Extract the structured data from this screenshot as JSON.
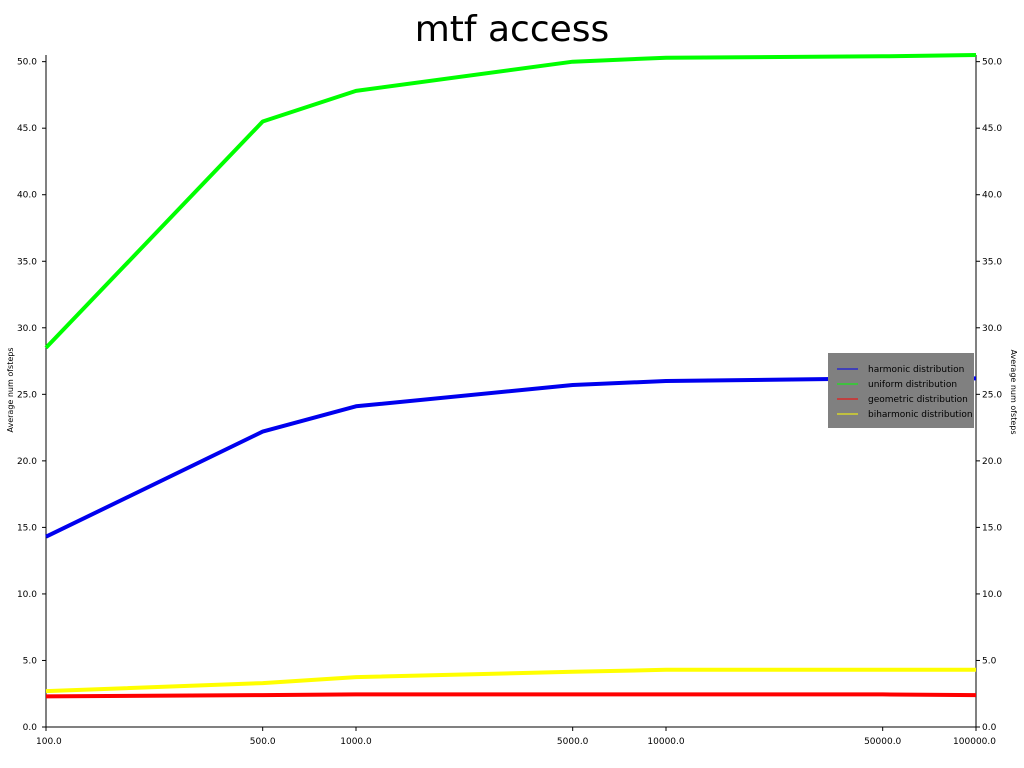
{
  "chart_data": {
    "type": "line",
    "title": "mtf access",
    "xlabel": "",
    "ylabel": "Average num of steps",
    "ylabel_display": "Average num ofsteps",
    "x_scale": "log",
    "x": [
      100,
      500,
      1000,
      5000,
      10000,
      50000,
      100000
    ],
    "x_tick_labels": [
      "100.0",
      "500.0",
      "1000.0",
      "5000.0",
      "10000.0",
      "50000.0",
      "100000.0"
    ],
    "xlim": [
      100,
      100000
    ],
    "ylim": [
      0,
      50.5
    ],
    "y_ticks": [
      0,
      5,
      10,
      15,
      20,
      25,
      30,
      35,
      40,
      45,
      50
    ],
    "y_tick_labels": [
      "0.0",
      "5.0",
      "10.0",
      "15.0",
      "20.0",
      "25.0",
      "30.0",
      "35.0",
      "40.0",
      "45.0",
      "50.0"
    ],
    "grid": false,
    "legend_position": "right",
    "legend_background": "#808080",
    "series": [
      {
        "name": "harmonic distribution",
        "color": "#0000ee",
        "values": [
          14.3,
          22.2,
          24.1,
          25.7,
          26.0,
          26.2,
          26.2
        ]
      },
      {
        "name": "uniform distribution",
        "color": "#00ff00",
        "values": [
          28.5,
          45.5,
          47.8,
          50.0,
          50.3,
          50.4,
          50.5
        ]
      },
      {
        "name": "geometric distribution",
        "color": "#ff0000",
        "values": [
          2.3,
          2.4,
          2.45,
          2.45,
          2.45,
          2.45,
          2.4
        ]
      },
      {
        "name": "biharmonic distribution",
        "color": "#ffff00",
        "values": [
          2.7,
          3.3,
          3.75,
          4.15,
          4.3,
          4.3,
          4.3
        ]
      }
    ]
  }
}
